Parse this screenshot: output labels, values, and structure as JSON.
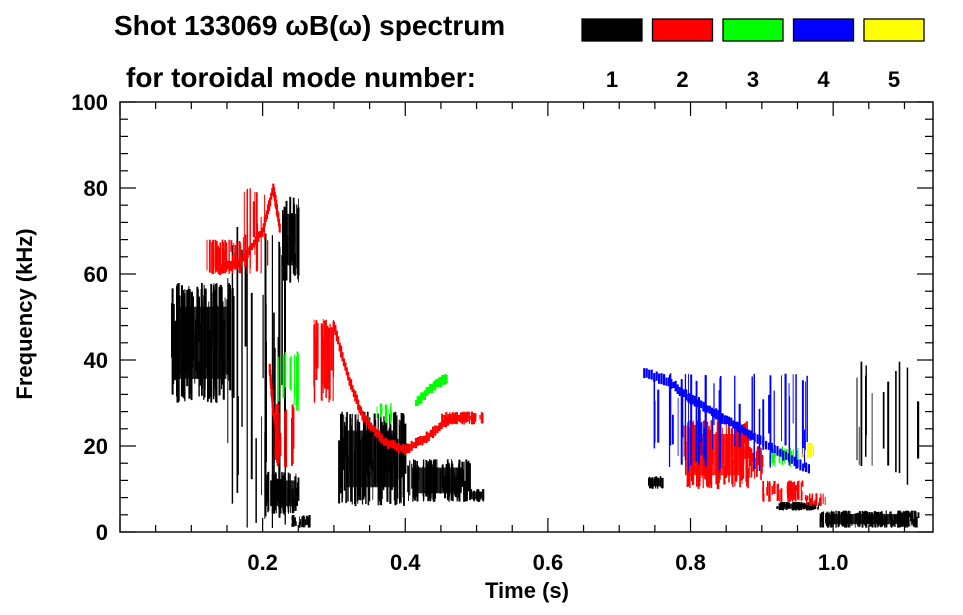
{
  "chart_data": {
    "type": "heatmap",
    "title_line1": "Shot 133069 ωB(ω) spectrum",
    "title_line2": "for toroidal mode number:",
    "xlabel": "Time (s)",
    "ylabel": "Frequency (kHz)",
    "xlim": [
      0.0,
      1.14
    ],
    "ylim": [
      0,
      100
    ],
    "x_ticks": [
      {
        "value": 0.2,
        "label": "0.2"
      },
      {
        "value": 0.4,
        "label": "0.4"
      },
      {
        "value": 0.6,
        "label": "0.6"
      },
      {
        "value": 0.8,
        "label": "0.8"
      },
      {
        "value": 1.0,
        "label": "1.0"
      }
    ],
    "y_ticks": [
      {
        "value": 0,
        "label": "0"
      },
      {
        "value": 20,
        "label": "20"
      },
      {
        "value": 40,
        "label": "40"
      },
      {
        "value": 60,
        "label": "60"
      },
      {
        "value": 80,
        "label": "80"
      },
      {
        "value": 100,
        "label": "100"
      }
    ],
    "legend": [
      {
        "mode": "1",
        "color": "#000000"
      },
      {
        "mode": "2",
        "color": "#ff0000"
      },
      {
        "mode": "3",
        "color": "#00ff00"
      },
      {
        "mode": "4",
        "color": "#0000ff"
      },
      {
        "mode": "5",
        "color": "#ffff00"
      }
    ],
    "regions": [
      {
        "mode": 1,
        "t": [
          0.07,
          0.16
        ],
        "f": [
          30,
          58
        ],
        "density": 0.9
      },
      {
        "mode": 1,
        "t": [
          0.15,
          0.24
        ],
        "f": [
          0,
          72
        ],
        "density": 0.22
      },
      {
        "mode": 1,
        "t": [
          0.225,
          0.25
        ],
        "f": [
          58,
          78
        ],
        "density": 0.8
      },
      {
        "mode": 1,
        "t": [
          0.205,
          0.25
        ],
        "f": [
          4,
          14
        ],
        "density": 0.8
      },
      {
        "mode": 1,
        "t": [
          0.24,
          0.265
        ],
        "f": [
          1,
          4
        ],
        "density": 0.7
      },
      {
        "mode": 1,
        "t": [
          0.305,
          0.4
        ],
        "f": [
          6,
          28
        ],
        "density": 0.85
      },
      {
        "mode": 1,
        "t": [
          0.4,
          0.49
        ],
        "f": [
          7,
          17
        ],
        "density": 0.85
      },
      {
        "mode": 1,
        "t": [
          0.49,
          0.51
        ],
        "f": [
          7,
          10
        ],
        "density": 0.8
      },
      {
        "mode": 1,
        "t": [
          0.74,
          0.76
        ],
        "f": [
          10,
          13
        ],
        "density": 0.8
      },
      {
        "mode": 1,
        "t": [
          0.92,
          0.98
        ],
        "f": [
          5,
          7
        ],
        "density": 0.85
      },
      {
        "mode": 1,
        "t": [
          0.98,
          1.12
        ],
        "f": [
          1,
          5
        ],
        "density": 0.95
      },
      {
        "mode": 1,
        "t": [
          1.03,
          1.12
        ],
        "f": [
          10,
          40
        ],
        "density": 0.1
      },
      {
        "mode": 2,
        "t": [
          0.12,
          0.17
        ],
        "f": [
          60,
          68
        ],
        "density": 0.6
      },
      {
        "mode": 2,
        "t": [
          0.17,
          0.21
        ],
        "f": [
          60,
          80
        ],
        "density": 0.3
      },
      {
        "mode": 2,
        "t": [
          0.215,
          0.245
        ],
        "f": [
          15,
          30
        ],
        "density": 0.35
      },
      {
        "mode": 2,
        "t": [
          0.27,
          0.3
        ],
        "f": [
          30,
          50
        ],
        "density": 0.6
      },
      {
        "mode": 2,
        "t": [
          0.45,
          0.51
        ],
        "f": [
          25,
          28
        ],
        "density": 0.6
      },
      {
        "mode": 2,
        "t": [
          0.79,
          0.88
        ],
        "f": [
          10,
          26
        ],
        "density": 0.85
      },
      {
        "mode": 2,
        "t": [
          0.88,
          0.9
        ],
        "f": [
          12,
          20
        ],
        "density": 0.7
      },
      {
        "mode": 2,
        "t": [
          0.9,
          0.96
        ],
        "f": [
          7,
          12
        ],
        "density": 0.6
      },
      {
        "mode": 2,
        "t": [
          0.96,
          0.99
        ],
        "f": [
          6,
          9
        ],
        "density": 0.55
      },
      {
        "mode": 3,
        "t": [
          0.22,
          0.25
        ],
        "f": [
          28,
          42
        ],
        "density": 0.35
      },
      {
        "mode": 3,
        "t": [
          0.355,
          0.38
        ],
        "f": [
          25,
          30
        ],
        "density": 0.35
      },
      {
        "mode": 3,
        "t": [
          0.91,
          0.95
        ],
        "f": [
          15,
          20
        ],
        "density": 0.4
      },
      {
        "mode": 4,
        "t": [
          0.74,
          0.97
        ],
        "f": [
          14,
          37
        ],
        "density": 0.15
      },
      {
        "mode": 5,
        "t": [
          0.955,
          0.975
        ],
        "f": [
          17,
          21
        ],
        "density": 0.4
      }
    ],
    "tracks": [
      {
        "mode": 2,
        "points": [
          [
            0.3,
            48
          ],
          [
            0.32,
            36
          ],
          [
            0.34,
            27
          ],
          [
            0.37,
            21
          ],
          [
            0.4,
            19
          ],
          [
            0.43,
            22
          ],
          [
            0.46,
            26
          ],
          [
            0.49,
            27
          ]
        ]
      },
      {
        "mode": 2,
        "points": [
          [
            0.14,
            61
          ],
          [
            0.17,
            63
          ],
          [
            0.2,
            70
          ],
          [
            0.215,
            80
          ],
          [
            0.225,
            70
          ]
        ]
      },
      {
        "mode": 2,
        "points": [
          [
            0.21,
            38
          ],
          [
            0.215,
            28
          ],
          [
            0.225,
            18
          ]
        ]
      },
      {
        "mode": 3,
        "points": [
          [
            0.415,
            30
          ],
          [
            0.44,
            34
          ],
          [
            0.46,
            36
          ]
        ]
      },
      {
        "mode": 4,
        "points": [
          [
            0.735,
            37
          ],
          [
            0.77,
            35
          ],
          [
            0.8,
            31
          ],
          [
            0.83,
            28
          ],
          [
            0.86,
            25
          ],
          [
            0.89,
            22
          ],
          [
            0.93,
            18
          ],
          [
            0.97,
            14
          ]
        ]
      }
    ]
  }
}
